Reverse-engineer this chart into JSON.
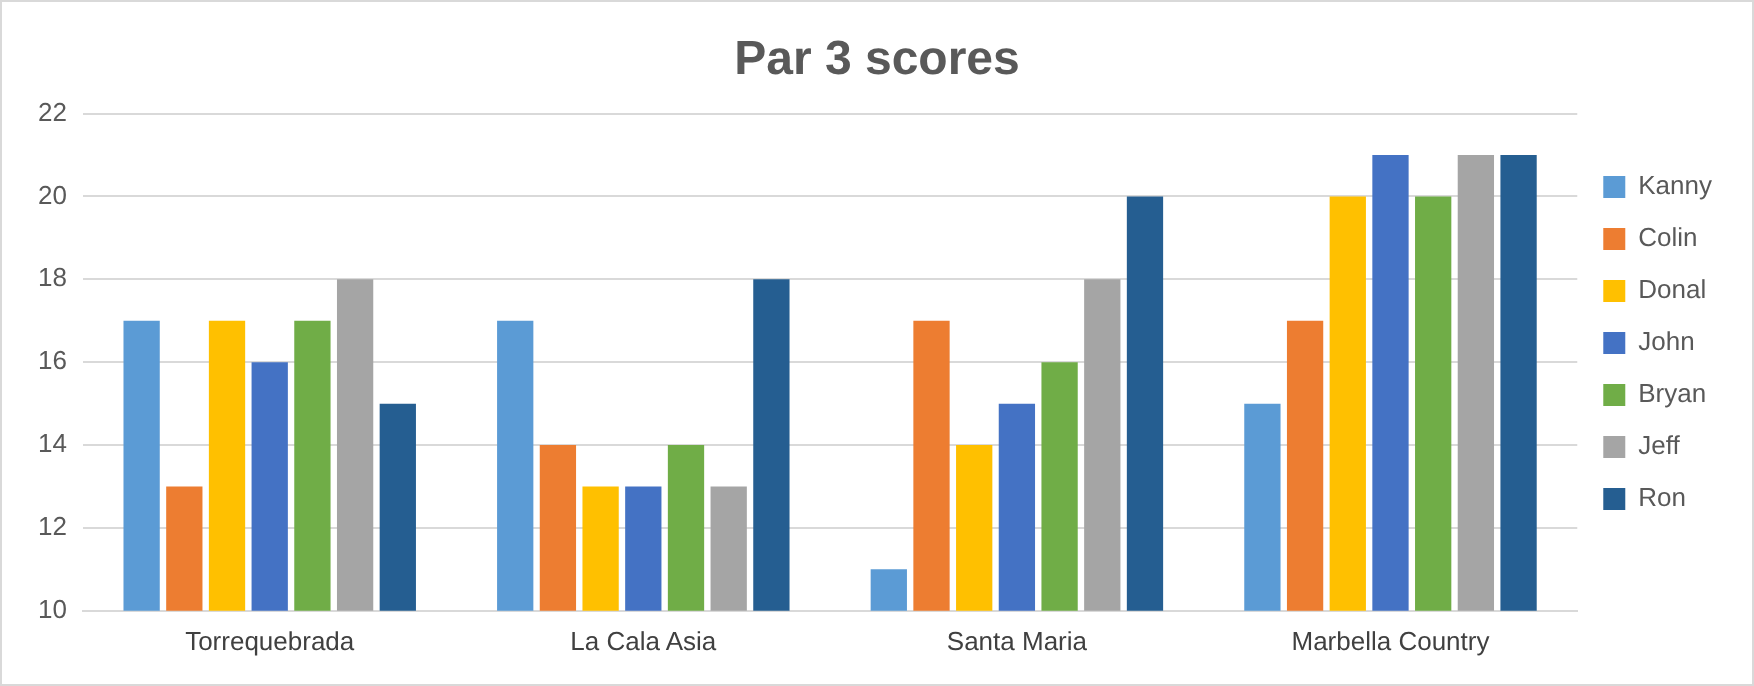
{
  "chart_data": {
    "type": "bar",
    "title": "Par 3 scores",
    "categories": [
      "Torrequebrada",
      "La Cala Asia",
      "Santa Maria",
      "Marbella Country"
    ],
    "series": [
      {
        "name": "Kanny",
        "color": "#5b9bd5",
        "values": [
          17,
          17,
          11,
          15
        ]
      },
      {
        "name": "Colin",
        "color": "#ed7d31",
        "values": [
          13,
          14,
          17,
          17
        ]
      },
      {
        "name": "Donal",
        "color": "#ffc000",
        "values": [
          17,
          13,
          14,
          20
        ]
      },
      {
        "name": "John",
        "color": "#4472c4",
        "values": [
          16,
          13,
          15,
          21
        ]
      },
      {
        "name": "Bryan",
        "color": "#70ad47",
        "values": [
          17,
          14,
          16,
          20
        ]
      },
      {
        "name": "Jeff",
        "color": "#a5a5a5",
        "values": [
          18,
          13,
          18,
          21
        ]
      },
      {
        "name": "Ron",
        "color": "#255e91",
        "values": [
          15,
          18,
          20,
          21
        ]
      }
    ],
    "ylim": [
      10,
      22
    ],
    "yticks": [
      10,
      12,
      14,
      16,
      18,
      20,
      22
    ],
    "grid": "y",
    "legend": "right"
  }
}
